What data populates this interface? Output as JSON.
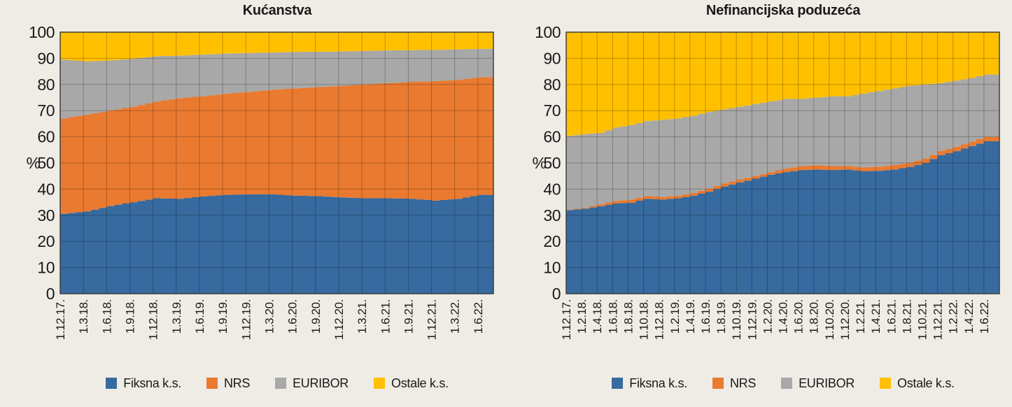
{
  "page": {
    "background": "#EFECE6"
  },
  "colors": {
    "fiksna": "#376A9E",
    "nrs": "#E97A30",
    "euribor": "#A8A8A8",
    "ostale": "#FFC000",
    "text": "#1A1A1A",
    "plot_border": "#3F3F3F",
    "gridline": "rgba(0,0,0,0.25)"
  },
  "chart_data": [
    {
      "type": "area",
      "stacked": true,
      "units": "percent",
      "title": "Kućanstva",
      "ylabel": "%",
      "ylim": [
        0,
        100
      ],
      "y_ticks": [
        0,
        10,
        20,
        30,
        40,
        50,
        60,
        70,
        80,
        90,
        100
      ],
      "grid": true,
      "legend_position": "bottom",
      "tick_step_months": 3,
      "total_months": 56,
      "categories": [
        "1.12.17.",
        "1.3.18.",
        "1.6.18.",
        "1.9.18.",
        "1.12.18.",
        "1.3.19.",
        "1.6.19.",
        "1.9.19.",
        "1.12.19.",
        "1.3.20.",
        "1.6.20.",
        "1.9.20.",
        "1.12.20.",
        "1.3.21.",
        "1.6.21.",
        "1.9.21.",
        "1.12.21.",
        "1.3.22.",
        "1.6.22."
      ],
      "series": [
        {
          "name": "Fiksna k.s.",
          "color": "#376A9E",
          "values": [
            30.5,
            31.5,
            33.5,
            35.0,
            36.5,
            36.3,
            37.2,
            37.8,
            38.0,
            38.0,
            37.5,
            37.3,
            36.8,
            36.5,
            36.5,
            36.3,
            35.6,
            36.3,
            37.8
          ]
        },
        {
          "name": "NRS",
          "color": "#E97A30",
          "values": [
            36.5,
            37.0,
            36.5,
            36.5,
            37.0,
            38.5,
            38.3,
            38.7,
            39.2,
            40.0,
            41.0,
            41.7,
            42.7,
            43.5,
            44.0,
            44.7,
            45.7,
            45.5,
            45.0
          ]
        },
        {
          "name": "EURIBOR",
          "color": "#A8A8A8",
          "values": [
            22.5,
            20.3,
            19.2,
            18.3,
            17.3,
            16.2,
            15.9,
            15.3,
            14.8,
            14.2,
            13.9,
            13.5,
            13.1,
            12.8,
            12.5,
            12.1,
            11.9,
            11.6,
            10.8
          ]
        },
        {
          "name": "Ostale k.s.",
          "color": "#FFC000",
          "values": [
            10.5,
            11.2,
            10.8,
            10.2,
            9.2,
            9.0,
            8.6,
            8.2,
            8.0,
            7.8,
            7.6,
            7.5,
            7.4,
            7.2,
            7.0,
            6.9,
            6.8,
            6.6,
            6.4
          ]
        }
      ]
    },
    {
      "type": "area",
      "stacked": true,
      "units": "percent",
      "title": "Nefinancijska poduzeća",
      "ylabel": "%",
      "ylim": [
        0,
        100
      ],
      "y_ticks": [
        0,
        10,
        20,
        30,
        40,
        50,
        60,
        70,
        80,
        90,
        100
      ],
      "grid": true,
      "legend_position": "bottom",
      "tick_step_months": 2,
      "total_months": 56,
      "categories": [
        "1.12.17.",
        "1.2.18.",
        "1.4.18.",
        "1.6.18.",
        "1.8.18.",
        "1.10.18.",
        "1.12.18.",
        "1.2.19.",
        "1.4.19.",
        "1.6.19.",
        "1.8.19.",
        "1.10.19.",
        "1.12.19.",
        "1.2.20.",
        "1.4.20.",
        "1.6.20.",
        "1.8.20.",
        "1.10.20.",
        "1.12.20.",
        "1.2.21.",
        "1.4.21.",
        "1.6.21.",
        "1.8.21.",
        "1.10.21.",
        "1.12.21.",
        "1.2.22.",
        "1.4.22.",
        "1.6.22."
      ],
      "series": [
        {
          "name": "Fiksna k.s.",
          "color": "#376A9E",
          "values": [
            32.0,
            32.5,
            33.5,
            34.5,
            34.8,
            36.3,
            36.0,
            36.5,
            37.5,
            39.0,
            41.0,
            42.5,
            44.0,
            45.5,
            46.5,
            47.3,
            47.5,
            47.3,
            47.5,
            46.8,
            47.0,
            47.5,
            48.5,
            50.0,
            53.0,
            54.5,
            56.5,
            58.3
          ]
        },
        {
          "name": "NRS",
          "color": "#E97A30",
          "values": [
            0.2,
            0.3,
            0.8,
            1.0,
            1.2,
            1.0,
            1.0,
            1.0,
            1.0,
            1.2,
            1.2,
            1.2,
            1.0,
            1.0,
            1.4,
            1.5,
            1.6,
            1.5,
            1.3,
            1.5,
            1.6,
            1.7,
            1.7,
            1.6,
            1.6,
            1.7,
            1.7,
            1.7
          ]
        },
        {
          "name": "EURIBOR",
          "color": "#A8A8A8",
          "values": [
            28.1,
            28.2,
            27.2,
            28.0,
            28.5,
            28.7,
            29.5,
            29.5,
            29.5,
            29.3,
            28.3,
            27.8,
            27.5,
            27.0,
            26.6,
            25.7,
            25.9,
            26.7,
            26.7,
            28.2,
            28.9,
            29.3,
            29.3,
            28.4,
            25.9,
            25.3,
            24.3,
            23.8
          ]
        },
        {
          "name": "Ostale k.s.",
          "color": "#FFC000",
          "values": [
            39.7,
            39.0,
            38.5,
            36.5,
            35.5,
            34.0,
            33.5,
            33.0,
            32.0,
            30.5,
            29.5,
            28.5,
            27.5,
            26.5,
            25.5,
            25.5,
            25.0,
            24.5,
            24.5,
            23.5,
            22.5,
            21.5,
            20.5,
            20.0,
            19.5,
            18.5,
            17.5,
            16.2
          ]
        }
      ]
    }
  ]
}
